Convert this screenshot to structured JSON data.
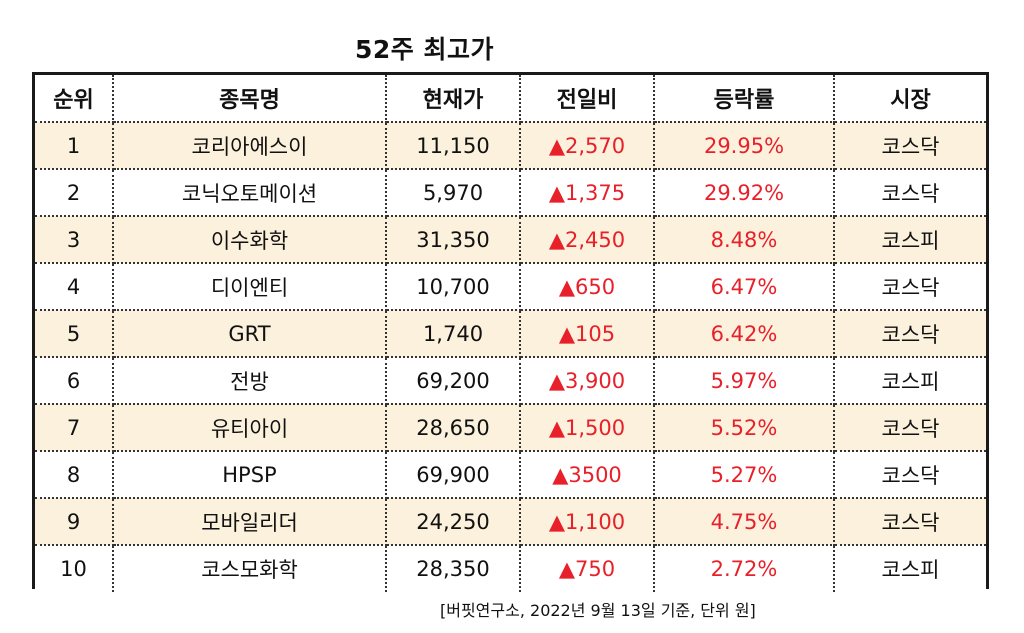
{
  "title": "52주 최고가",
  "headers": {
    "rank": "순위",
    "name": "종목명",
    "price": "현재가",
    "change": "전일비",
    "rate": "등락률",
    "market": "시장"
  },
  "rows": [
    {
      "rank": "1",
      "name": "코리아에스이",
      "price": "11,150",
      "change": "▲2,570",
      "rate": "29.95%",
      "market": "코스닥"
    },
    {
      "rank": "2",
      "name": "코닉오토메이션",
      "price": "5,970",
      "change": "▲1,375",
      "rate": "29.92%",
      "market": "코스닥"
    },
    {
      "rank": "3",
      "name": "이수화학",
      "price": "31,350",
      "change": "▲2,450",
      "rate": "8.48%",
      "market": "코스피"
    },
    {
      "rank": "4",
      "name": "디이엔티",
      "price": "10,700",
      "change": "▲650",
      "rate": "6.47%",
      "market": "코스닥"
    },
    {
      "rank": "5",
      "name": "GRT",
      "price": "1,740",
      "change": "▲105",
      "rate": "6.42%",
      "market": "코스닥"
    },
    {
      "rank": "6",
      "name": "전방",
      "price": "69,200",
      "change": "▲3,900",
      "rate": "5.97%",
      "market": "코스피"
    },
    {
      "rank": "7",
      "name": "유티아이",
      "price": "28,650",
      "change": "▲1,500",
      "rate": "5.52%",
      "market": "코스닥"
    },
    {
      "rank": "8",
      "name": "HPSP",
      "price": "69,900",
      "change": "▲3500",
      "rate": "5.27%",
      "market": "코스닥"
    },
    {
      "rank": "9",
      "name": "모바일리더",
      "price": "24,250",
      "change": "▲1,100",
      "rate": "4.75%",
      "market": "코스닥"
    },
    {
      "rank": "10",
      "name": "코스모화학",
      "price": "28,350",
      "change": "▲750",
      "rate": "2.72%",
      "market": "코스피"
    }
  ],
  "caption": "[버핏연구소, 2022년 9월 13일 기준, 단위 원]",
  "colors": {
    "up": "#e8202a",
    "stripe": "#fbf1dc",
    "border": "#1a1a1a"
  }
}
